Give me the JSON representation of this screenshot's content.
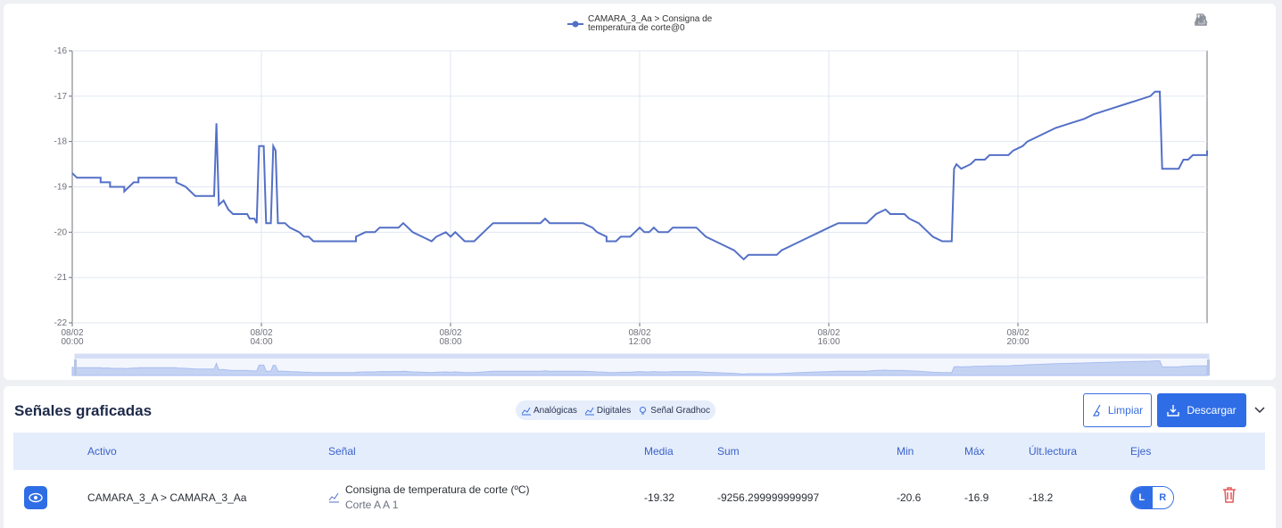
{
  "chart": {
    "legend_line1": "CAMARA_3_Aa > Consigna de",
    "legend_line2": "temperatura de corte@0",
    "series_color": "#5470c6",
    "toolbox": [
      "download-icon",
      "data-view-icon",
      "line-chart-icon",
      "bar-chart-icon"
    ]
  },
  "chart_data": {
    "type": "line",
    "ylim": [
      -22,
      -16
    ],
    "yticks": [
      "-16",
      "-17",
      "-18",
      "-19",
      "-20",
      "-21",
      "-22"
    ],
    "xlim": [
      0,
      24
    ],
    "xticks": [
      {
        "date": "08/02",
        "time": "00:00"
      },
      {
        "date": "08/02",
        "time": "04:00"
      },
      {
        "date": "08/02",
        "time": "08:00"
      },
      {
        "date": "08/02",
        "time": "12:00"
      },
      {
        "date": "08/02",
        "time": "16:00"
      },
      {
        "date": "08/02",
        "time": "20:00"
      }
    ],
    "series": [
      {
        "values": [
          [
            0.0,
            -18.7
          ],
          [
            0.1,
            -18.8
          ],
          [
            0.6,
            -18.8
          ],
          [
            0.6,
            -18.9
          ],
          [
            0.8,
            -18.9
          ],
          [
            0.8,
            -19.0
          ],
          [
            1.1,
            -19.0
          ],
          [
            1.1,
            -19.1
          ],
          [
            1.2,
            -19.0
          ],
          [
            1.3,
            -18.9
          ],
          [
            1.4,
            -18.9
          ],
          [
            1.4,
            -18.8
          ],
          [
            2.2,
            -18.8
          ],
          [
            2.2,
            -18.9
          ],
          [
            2.4,
            -19.0
          ],
          [
            2.5,
            -19.1
          ],
          [
            2.6,
            -19.2
          ],
          [
            3.0,
            -19.2
          ],
          [
            3.05,
            -17.6
          ],
          [
            3.1,
            -19.4
          ],
          [
            3.2,
            -19.3
          ],
          [
            3.3,
            -19.5
          ],
          [
            3.4,
            -19.6
          ],
          [
            3.7,
            -19.6
          ],
          [
            3.75,
            -19.7
          ],
          [
            3.85,
            -19.7
          ],
          [
            3.9,
            -19.8
          ],
          [
            3.95,
            -18.1
          ],
          [
            4.05,
            -18.1
          ],
          [
            4.1,
            -19.8
          ],
          [
            4.2,
            -19.8
          ],
          [
            4.25,
            -18.1
          ],
          [
            4.3,
            -18.2
          ],
          [
            4.35,
            -19.8
          ],
          [
            4.5,
            -19.8
          ],
          [
            4.6,
            -19.9
          ],
          [
            4.8,
            -20.0
          ],
          [
            4.9,
            -20.1
          ],
          [
            5.0,
            -20.1
          ],
          [
            5.1,
            -20.2
          ],
          [
            6.0,
            -20.2
          ],
          [
            6.0,
            -20.1
          ],
          [
            6.2,
            -20.0
          ],
          [
            6.4,
            -20.0
          ],
          [
            6.5,
            -19.9
          ],
          [
            6.9,
            -19.9
          ],
          [
            7.0,
            -19.8
          ],
          [
            7.1,
            -19.9
          ],
          [
            7.2,
            -20.0
          ],
          [
            7.4,
            -20.1
          ],
          [
            7.6,
            -20.2
          ],
          [
            7.7,
            -20.1
          ],
          [
            7.9,
            -20.0
          ],
          [
            8.0,
            -20.1
          ],
          [
            8.1,
            -20.0
          ],
          [
            8.2,
            -20.1
          ],
          [
            8.3,
            -20.2
          ],
          [
            8.5,
            -20.2
          ],
          [
            8.6,
            -20.1
          ],
          [
            8.7,
            -20.0
          ],
          [
            8.8,
            -19.9
          ],
          [
            8.9,
            -19.8
          ],
          [
            9.9,
            -19.8
          ],
          [
            10.0,
            -19.7
          ],
          [
            10.1,
            -19.8
          ],
          [
            10.8,
            -19.8
          ],
          [
            11.0,
            -19.9
          ],
          [
            11.1,
            -20.0
          ],
          [
            11.3,
            -20.1
          ],
          [
            11.3,
            -20.2
          ],
          [
            11.5,
            -20.2
          ],
          [
            11.6,
            -20.1
          ],
          [
            11.8,
            -20.1
          ],
          [
            11.9,
            -20.0
          ],
          [
            12.0,
            -19.9
          ],
          [
            12.1,
            -20.0
          ],
          [
            12.2,
            -20.0
          ],
          [
            12.3,
            -19.9
          ],
          [
            12.4,
            -20.0
          ],
          [
            12.6,
            -20.0
          ],
          [
            12.7,
            -19.9
          ],
          [
            13.2,
            -19.9
          ],
          [
            13.3,
            -20.0
          ],
          [
            13.4,
            -20.1
          ],
          [
            13.6,
            -20.2
          ],
          [
            13.8,
            -20.3
          ],
          [
            14.0,
            -20.4
          ],
          [
            14.1,
            -20.5
          ],
          [
            14.2,
            -20.6
          ],
          [
            14.3,
            -20.5
          ],
          [
            14.9,
            -20.5
          ],
          [
            15.0,
            -20.4
          ],
          [
            15.2,
            -20.3
          ],
          [
            15.4,
            -20.2
          ],
          [
            15.6,
            -20.1
          ],
          [
            15.8,
            -20.0
          ],
          [
            16.0,
            -19.9
          ],
          [
            16.2,
            -19.8
          ],
          [
            16.8,
            -19.8
          ],
          [
            16.9,
            -19.7
          ],
          [
            17.0,
            -19.6
          ],
          [
            17.2,
            -19.5
          ],
          [
            17.3,
            -19.6
          ],
          [
            17.6,
            -19.6
          ],
          [
            17.7,
            -19.7
          ],
          [
            17.9,
            -19.8
          ],
          [
            18.0,
            -19.9
          ],
          [
            18.1,
            -20.0
          ],
          [
            18.2,
            -20.1
          ],
          [
            18.4,
            -20.2
          ],
          [
            18.6,
            -20.2
          ],
          [
            18.65,
            -18.6
          ],
          [
            18.7,
            -18.5
          ],
          [
            18.8,
            -18.6
          ],
          [
            19.0,
            -18.5
          ],
          [
            19.1,
            -18.4
          ],
          [
            19.3,
            -18.4
          ],
          [
            19.4,
            -18.3
          ],
          [
            19.8,
            -18.3
          ],
          [
            19.9,
            -18.2
          ],
          [
            20.1,
            -18.1
          ],
          [
            20.2,
            -18.0
          ],
          [
            20.4,
            -17.9
          ],
          [
            20.6,
            -17.8
          ],
          [
            20.8,
            -17.7
          ],
          [
            21.1,
            -17.6
          ],
          [
            21.4,
            -17.5
          ],
          [
            21.6,
            -17.4
          ],
          [
            21.9,
            -17.3
          ],
          [
            22.2,
            -17.2
          ],
          [
            22.5,
            -17.1
          ],
          [
            22.8,
            -17.0
          ],
          [
            22.9,
            -16.9
          ],
          [
            23.0,
            -16.9
          ],
          [
            23.05,
            -18.6
          ],
          [
            23.4,
            -18.6
          ],
          [
            23.5,
            -18.4
          ],
          [
            23.6,
            -18.4
          ],
          [
            23.7,
            -18.3
          ],
          [
            24.0,
            -18.3
          ],
          [
            24.1,
            -18.2
          ],
          [
            24.2,
            -18.2
          ]
        ]
      }
    ]
  },
  "signals": {
    "title": "Señales graficadas",
    "filters": [
      "Analógicas",
      "Digitales",
      "Señal Gradhoc"
    ],
    "clear_label": "Limpiar",
    "download_label": "Descargar",
    "headers": {
      "activo": "Activo",
      "senal": "Señal",
      "media": "Media",
      "sum": "Sum",
      "min": "Min",
      "max": "Máx",
      "ultima": "Últ.lectura",
      "ejes": "Ejes"
    },
    "row": {
      "activo": "CAMARA_3_A > CAMARA_3_Aa",
      "senal": "Consigna de temperatura de corte (ºC)",
      "senal_sub": "Corte A A 1",
      "media": "-19.32",
      "sum": "-9256.299999999997",
      "min": "-20.6",
      "max": "-16.9",
      "ultima": "-18.2",
      "axis_l": "L",
      "axis_r": "R"
    },
    "accent": "#2f6de6"
  }
}
